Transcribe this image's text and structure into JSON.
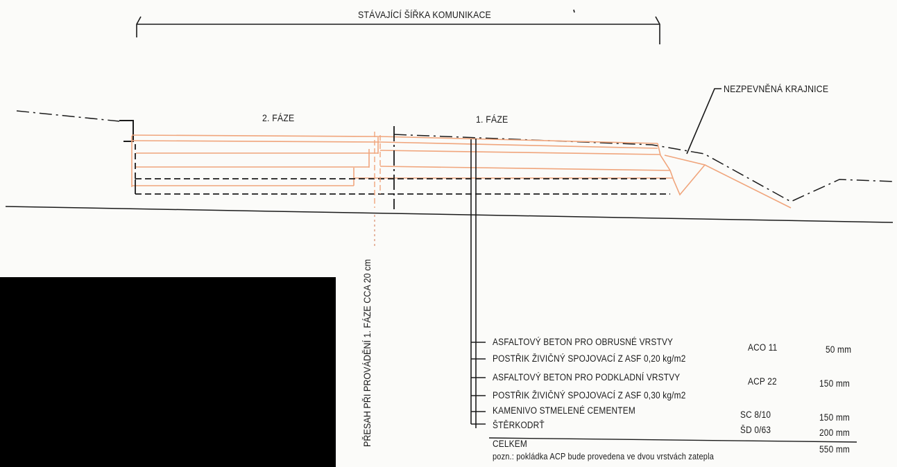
{
  "top_label": "STÁVAJÍCÍ ŠÍŘKA KOMUNIKACE",
  "phase2_label": "2. FÁZE",
  "phase1_label": "1. FÁZE",
  "shoulder_label": "NEZPEVNĚNÁ KRAJNICE",
  "overlap_label": "PŘESAH PŘI PROVÁDĚNÍ 1. FÁZE CCA 20 cm",
  "layers": [
    {
      "name": "ASFALTOVÝ BETON PRO OBRUSNÉ VRSTVY",
      "code": "ACO 11",
      "thickness": "50 mm"
    },
    {
      "name": "POSTŘIK ŽIVIČNÝ SPOJOVACÍ Z ASF 0,20 kg/m2",
      "code": "",
      "thickness": ""
    },
    {
      "name": "ASFALTOVÝ BETON PRO PODKLADNÍ VRSTVY",
      "code": "ACP 22",
      "thickness": "150 mm"
    },
    {
      "name": "POSTŘIK ŽIVIČNÝ SPOJOVACÍ Z ASF 0,30 kg/m2",
      "code": "",
      "thickness": ""
    },
    {
      "name": "KAMENIVO STMELENÉ CEMENTEM",
      "code": "SC 8/10",
      "thickness": "150 mm"
    },
    {
      "name": "ŠTĚRKODRŤ",
      "code": "ŠD 0/63",
      "thickness": "200 mm"
    }
  ],
  "total": {
    "label": "CELKEM",
    "thickness": "550 mm"
  },
  "note": "pozn.: pokládka ACP bude provedena ve dvou vrstvách zatepla",
  "colors": {
    "ink": "#1a1a1a",
    "layer_lines": "#f0a57c",
    "redaction": "#000000"
  }
}
